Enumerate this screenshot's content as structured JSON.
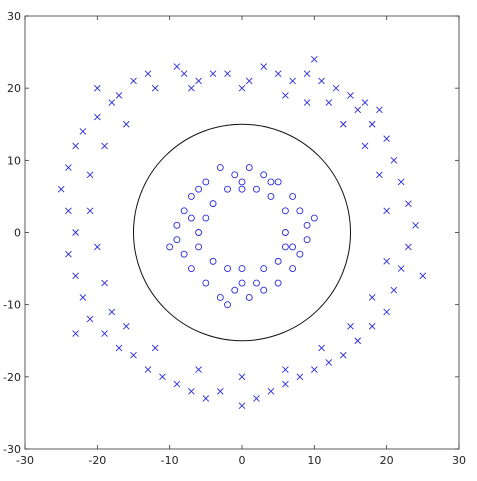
{
  "chart_data": {
    "type": "scatter",
    "title": "",
    "xlabel": "",
    "ylabel": "",
    "xlim": [
      -30,
      30
    ],
    "ylim": [
      -30,
      30
    ],
    "xticks": [
      -30,
      -20,
      -10,
      0,
      10,
      20,
      30
    ],
    "yticks": [
      -30,
      -20,
      -10,
      0,
      10,
      20,
      30
    ],
    "grid": false,
    "legend": "none",
    "series": [
      {
        "marker": "x",
        "color": "#2a2ad8",
        "description": "outer ring, radius approx 20-27",
        "points": [
          [
            -13,
            22
          ],
          [
            -9,
            23
          ],
          [
            -8,
            22
          ],
          [
            -6,
            21
          ],
          [
            -4,
            22
          ],
          [
            -2,
            22
          ],
          [
            1,
            21
          ],
          [
            3,
            23
          ],
          [
            5,
            22
          ],
          [
            7,
            21
          ],
          [
            9,
            22
          ],
          [
            11,
            21
          ],
          [
            13,
            20
          ],
          [
            15,
            19
          ],
          [
            17,
            18
          ],
          [
            -15,
            21
          ],
          [
            -17,
            19
          ],
          [
            -18,
            18
          ],
          [
            -20,
            16
          ],
          [
            -22,
            14
          ],
          [
            -23,
            12
          ],
          [
            -24,
            9
          ],
          [
            -25,
            6
          ],
          [
            -24,
            3
          ],
          [
            -23,
            0
          ],
          [
            -24,
            -3
          ],
          [
            -23,
            -6
          ],
          [
            -22,
            -9
          ],
          [
            -21,
            -12
          ],
          [
            -19,
            -14
          ],
          [
            -17,
            -16
          ],
          [
            -15,
            -17
          ],
          [
            -13,
            -19
          ],
          [
            -11,
            -20
          ],
          [
            -9,
            -21
          ],
          [
            -7,
            -22
          ],
          [
            -5,
            -23
          ],
          [
            -3,
            -22
          ],
          [
            0,
            -24
          ],
          [
            2,
            -23
          ],
          [
            4,
            -22
          ],
          [
            6,
            -21
          ],
          [
            8,
            -20
          ],
          [
            10,
            -19
          ],
          [
            12,
            -18
          ],
          [
            14,
            -17
          ],
          [
            16,
            -15
          ],
          [
            18,
            -13
          ],
          [
            20,
            -11
          ],
          [
            21,
            -8
          ],
          [
            22,
            -5
          ],
          [
            23,
            -2
          ],
          [
            24,
            1
          ],
          [
            23,
            4
          ],
          [
            22,
            7
          ],
          [
            21,
            10
          ],
          [
            20,
            13
          ],
          [
            18,
            15
          ],
          [
            16,
            17
          ],
          [
            19,
            17
          ],
          [
            -12,
            20
          ],
          [
            -7,
            20
          ],
          [
            0,
            20
          ],
          [
            6,
            19
          ],
          [
            12,
            18
          ],
          [
            -19,
            12
          ],
          [
            -21,
            8
          ],
          [
            -21,
            3
          ],
          [
            -20,
            -2
          ],
          [
            -19,
            -7
          ],
          [
            -18,
            -11
          ],
          [
            -16,
            -13
          ],
          [
            -12,
            -16
          ],
          [
            -6,
            -19
          ],
          [
            0,
            -20
          ],
          [
            6,
            -19
          ],
          [
            11,
            -16
          ],
          [
            15,
            -13
          ],
          [
            18,
            -9
          ],
          [
            20,
            -4
          ],
          [
            20,
            3
          ],
          [
            19,
            8
          ],
          [
            17,
            12
          ],
          [
            14,
            15
          ],
          [
            9,
            18
          ],
          [
            -16,
            15
          ],
          [
            -23,
            -14
          ],
          [
            25,
            -6
          ],
          [
            10,
            24
          ],
          [
            -20,
            20
          ]
        ]
      },
      {
        "marker": "o",
        "color": "#2a2ad8",
        "description": "inner ring, radius approx 5-10",
        "points": [
          [
            -3,
            9
          ],
          [
            -1,
            8
          ],
          [
            1,
            9
          ],
          [
            3,
            8
          ],
          [
            5,
            7
          ],
          [
            7,
            5
          ],
          [
            8,
            3
          ],
          [
            9,
            1
          ],
          [
            9,
            -1
          ],
          [
            8,
            -3
          ],
          [
            7,
            -5
          ],
          [
            5,
            -7
          ],
          [
            3,
            -8
          ],
          [
            1,
            -9
          ],
          [
            -1,
            -8
          ],
          [
            -3,
            -9
          ],
          [
            -5,
            -7
          ],
          [
            -7,
            -5
          ],
          [
            -8,
            -3
          ],
          [
            -9,
            -1
          ],
          [
            -9,
            1
          ],
          [
            -8,
            3
          ],
          [
            -7,
            5
          ],
          [
            -5,
            7
          ],
          [
            -2,
            6
          ],
          [
            0,
            6
          ],
          [
            2,
            6
          ],
          [
            4,
            5
          ],
          [
            6,
            3
          ],
          [
            6,
            0
          ],
          [
            6,
            -2
          ],
          [
            5,
            -4
          ],
          [
            3,
            -5
          ],
          [
            0,
            -5
          ],
          [
            -2,
            -5
          ],
          [
            -4,
            -4
          ],
          [
            -6,
            -2
          ],
          [
            -6,
            0
          ],
          [
            -5,
            2
          ],
          [
            -4,
            4
          ],
          [
            -6,
            6
          ],
          [
            4,
            7
          ],
          [
            10,
            2
          ],
          [
            -10,
            -2
          ],
          [
            -2,
            -10
          ],
          [
            2,
            -7
          ],
          [
            -7,
            2
          ],
          [
            7,
            -2
          ],
          [
            0,
            7
          ],
          [
            0,
            -7
          ]
        ]
      }
    ],
    "reference_circle": {
      "center": [
        0,
        0
      ],
      "radius": 15,
      "color": "#111111"
    }
  }
}
